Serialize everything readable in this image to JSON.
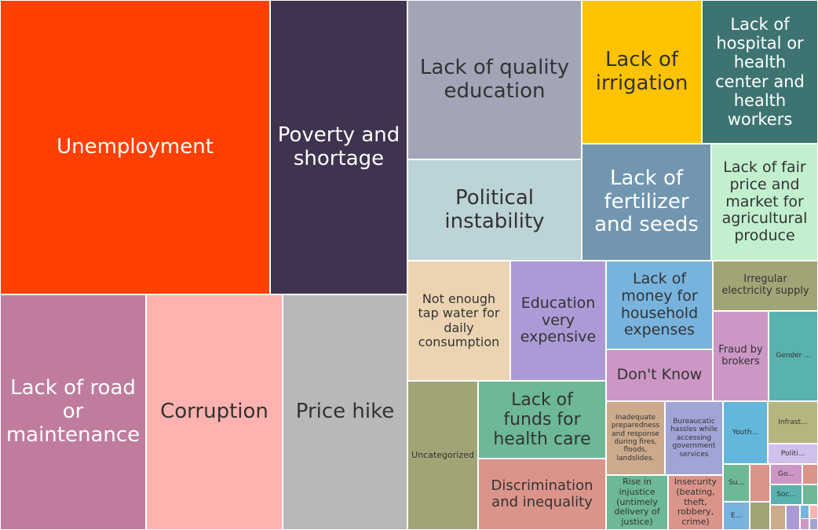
{
  "chart_data": {
    "type": "treemap",
    "items": [
      {
        "label": "Unemployment",
        "color": "#ff4000",
        "value": 8
      },
      {
        "label": "Poverty and\nshortage",
        "color": "#3f3350",
        "value": 4.7
      },
      {
        "label": "Lack of road\nor\nmaintenance",
        "color": "#c07c9e",
        "value": 3.5
      },
      {
        "label": "Corruption",
        "color": "#ffb2b0",
        "value": 3.2
      },
      {
        "label": "Price hike",
        "color": "#b8b8b8",
        "value": 3.1
      },
      {
        "label": "Lack of quality\neducation",
        "color": "#a1a5b6",
        "value": 2.6
      },
      {
        "label": "Political\ninstability",
        "color": "#bcd3d7",
        "value": 1.7
      },
      {
        "label": "Lack of\nirrigation",
        "color": "#ffc300",
        "value": 1.6
      },
      {
        "label": "Lack of\nhospital or\nhealth\ncenter and\nhealth\nworkers",
        "color": "#3d7472",
        "value": 1.6
      },
      {
        "label": "Lack of\nfertilizer\nand seeds",
        "color": "#7296b0",
        "value": 1.3
      },
      {
        "label": "Lack of fair\nprice and\nmarket for\nagricultural\nproduce",
        "color": "#c2f0cf",
        "value": 1.3
      },
      {
        "label": "Not enough\ntap water for\ndaily\nconsumption",
        "color": "#ecd4b2",
        "value": 1
      },
      {
        "label": "Education\nvery\nexpensive",
        "color": "#ac9ad7",
        "value": 1
      },
      {
        "label": "Lack of\nmoney for\nhousehold\nexpenses",
        "color": "#77b3dd",
        "value": 0.9
      },
      {
        "label": "Irregular\nelectricity supply",
        "color": "#a1a576",
        "value": 0.5
      },
      {
        "label": "Don't Know",
        "color": "#cc97c5",
        "value": 0.7
      },
      {
        "label": "Fraud by\nbrokers",
        "color": "#cc97c5",
        "value": 0.5
      },
      {
        "label": "Gender ...",
        "color": "#5ab2ae",
        "value": 0.4
      },
      {
        "label": "Uncategorized",
        "color": "#a1a576",
        "value": 1.1
      },
      {
        "label": "Lack of\nfunds for\nhealth care",
        "color": "#6db896",
        "value": 0.9
      },
      {
        "label": "Discrimination\nand inequality",
        "color": "#db948a",
        "value": 0.7
      },
      {
        "label": "Inadequate\npreparedness\nand response\nduring fires,\nfloods,\nlandslides.",
        "color": "#ccaa8b",
        "value": 0.4
      },
      {
        "label": "Bureaucatic\nhassles while\naccessing\ngovernment\nservices",
        "color": "#a1a5d6",
        "value": 0.4
      },
      {
        "label": "Youth...",
        "color": "#62b7db",
        "value": 0.3
      },
      {
        "label": "Infrast...",
        "color": "#b5b57f",
        "value": 0.2
      },
      {
        "label": "Politi...",
        "color": "#cfc0ec",
        "value": 0.1
      },
      {
        "label": "Rise in\ninjustice\n(untimely\ndelivery of\njustice)",
        "color": "#6db896",
        "value": 0.3
      },
      {
        "label": "Insecurity\n(beating,\ntheft,\nrobbery,\ncrime)",
        "color": "#db948a",
        "value": 0.3
      },
      {
        "label": "Su...",
        "color": "#6db896",
        "value": 0.1
      },
      {
        "label": "",
        "color": "#db948a",
        "value": 0.1
      },
      {
        "label": "Go...",
        "color": "#cc97c5",
        "value": 0.05
      },
      {
        "label": "",
        "color": "#db948a",
        "value": 0.05
      },
      {
        "label": "Soc...",
        "color": "#5ab2ae",
        "value": 0.05
      },
      {
        "label": "",
        "color": "#6db896",
        "value": 0.02
      },
      {
        "label": "E...",
        "color": "#77b3dd",
        "value": 0.05
      },
      {
        "label": "",
        "color": "#a1a576",
        "value": 0.05
      },
      {
        "label": "",
        "color": "#ccaa8b",
        "value": 0.02
      },
      {
        "label": "",
        "color": "#ac9ad7",
        "value": 0.02
      },
      {
        "label": "",
        "color": "#77b3dd",
        "value": 0.02
      },
      {
        "label": "",
        "color": "#ffb2b0",
        "value": 0.02
      },
      {
        "label": "",
        "color": "#cc97c5",
        "value": 0.01
      },
      {
        "label": "",
        "color": "#a1a5d6",
        "value": 0.01
      }
    ]
  }
}
